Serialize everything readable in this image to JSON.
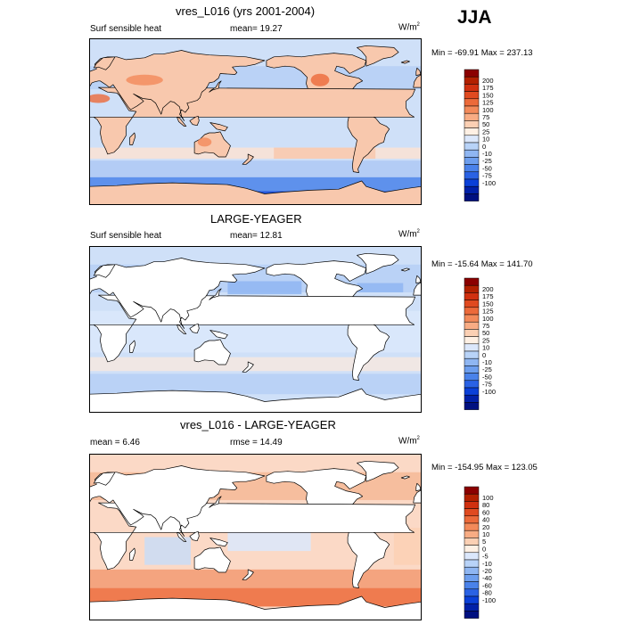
{
  "season": "JJA",
  "land_color": "#ffffff",
  "panels": [
    {
      "title": "vres_L016 (yrs 2001-2004)",
      "left_label": "Surf sensible heat",
      "center_label": "mean=  19.27",
      "right_label": "",
      "units": "W/m",
      "units_sup": "2",
      "minmax": "Min = -69.91 Max = 237.13",
      "colorbar": {
        "colors": [
          "#8b0000",
          "#b22000",
          "#d03010",
          "#e04a20",
          "#ec6a3a",
          "#f38a5a",
          "#f8ac84",
          "#fbd0b4",
          "#fef0e4",
          "#dbe7fb",
          "#b8d3f8",
          "#8fb6f2",
          "#6d9eee",
          "#4a82ea",
          "#2a62e4",
          "#0a40d8",
          "#0020a8",
          "#001080"
        ],
        "labels": [
          "200",
          "175",
          "150",
          "125",
          "100",
          "75",
          "50",
          "25",
          "10",
          "0",
          "-10",
          "-25",
          "-50",
          "-75",
          "-100"
        ]
      }
    },
    {
      "title": "LARGE-YEAGER",
      "left_label": "Surf sensible heat",
      "center_label": "mean=  12.81",
      "right_label": "",
      "units": "W/m",
      "units_sup": "2",
      "minmax": "Min = -15.64 Max = 141.70",
      "colorbar": {
        "colors": [
          "#8b0000",
          "#b22000",
          "#d03010",
          "#e04a20",
          "#ec6a3a",
          "#f38a5a",
          "#f8ac84",
          "#fbd0b4",
          "#fef0e4",
          "#dbe7fb",
          "#b8d3f8",
          "#8fb6f2",
          "#6d9eee",
          "#4a82ea",
          "#2a62e4",
          "#0a40d8",
          "#0020a8",
          "#001080"
        ],
        "labels": [
          "200",
          "175",
          "150",
          "125",
          "100",
          "75",
          "50",
          "25",
          "10",
          "0",
          "-10",
          "-25",
          "-50",
          "-75",
          "-100"
        ]
      }
    },
    {
      "title": "vres_L016 - LARGE-YEAGER",
      "left_label": "mean =   6.46",
      "center_label": "rmse =  14.49",
      "right_label": "",
      "units": "W/m",
      "units_sup": "2",
      "minmax": "Min = -154.95 Max = 123.05",
      "colorbar": {
        "colors": [
          "#8b0000",
          "#b22000",
          "#d03010",
          "#e04a20",
          "#ec6a3a",
          "#f38a5a",
          "#f8ac84",
          "#fbd0b4",
          "#fef0e4",
          "#dbe7fb",
          "#b8d3f8",
          "#8fb6f2",
          "#6d9eee",
          "#4a82ea",
          "#2a62e4",
          "#0a40d8",
          "#0020a8",
          "#001080"
        ],
        "labels": [
          "100",
          "80",
          "60",
          "40",
          "20",
          "10",
          "5",
          "0",
          "-5",
          "-10",
          "-20",
          "-40",
          "-60",
          "-80",
          "-100"
        ]
      }
    }
  ],
  "chart_data": [
    {
      "type": "heatmap",
      "title": "vres_L016 (yrs 2001-2004)",
      "variable": "Surf sensible heat",
      "units": "W/m2",
      "mean": 19.27,
      "min": -69.91,
      "max": 237.13,
      "levels": [
        -100,
        -75,
        -50,
        -25,
        -10,
        0,
        10,
        25,
        50,
        75,
        100,
        125,
        150,
        175,
        200
      ]
    },
    {
      "type": "heatmap",
      "title": "LARGE-YEAGER",
      "variable": "Surf sensible heat",
      "units": "W/m2",
      "mean": 12.81,
      "min": -15.64,
      "max": 141.7,
      "levels": [
        -100,
        -75,
        -50,
        -25,
        -10,
        0,
        10,
        25,
        50,
        75,
        100,
        125,
        150,
        175,
        200
      ]
    },
    {
      "type": "heatmap",
      "title": "vres_L016 - LARGE-YEAGER",
      "units": "W/m2",
      "mean": 6.46,
      "rmse": 14.49,
      "min": -154.95,
      "max": 123.05,
      "levels": [
        -100,
        -80,
        -60,
        -40,
        -20,
        -10,
        -5,
        0,
        5,
        10,
        20,
        40,
        60,
        80,
        100
      ]
    }
  ]
}
